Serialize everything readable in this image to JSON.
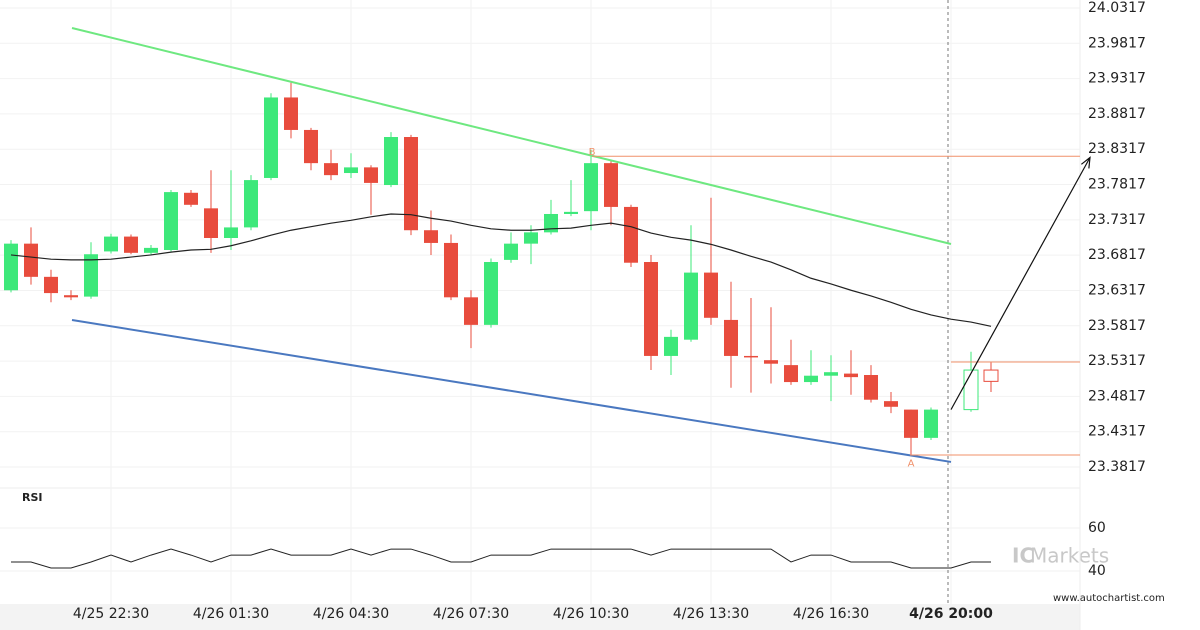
{
  "chart_data": {
    "type": "candlestick",
    "categories": [
      null,
      null,
      null,
      null,
      null,
      "4/25 22:30",
      null,
      null,
      null,
      null,
      null,
      "4/26 01:30",
      null,
      null,
      null,
      null,
      null,
      "4/26 04:30",
      null,
      null,
      null,
      null,
      null,
      "4/26 07:30",
      null,
      null,
      null,
      null,
      null,
      "4/26 10:30",
      null,
      null,
      null,
      null,
      null,
      "4/26 13:30",
      null,
      null,
      null,
      null,
      null,
      "4/26 16:30",
      null,
      null,
      null,
      null,
      null,
      "4/26 20:00",
      null,
      null
    ],
    "open": [
      23.632,
      23.698,
      23.651,
      23.625,
      23.623,
      23.687,
      23.708,
      23.685,
      23.689,
      23.77,
      23.748,
      23.706,
      23.721,
      23.791,
      23.905,
      23.859,
      23.812,
      23.798,
      23.806,
      23.781,
      23.849,
      23.717,
      23.699,
      23.622,
      23.583,
      23.675,
      23.698,
      23.714,
      23.74,
      23.744,
      23.812,
      23.75,
      23.672,
      23.539,
      23.562,
      23.657,
      23.59,
      23.539,
      23.533,
      23.526,
      23.502,
      23.511,
      23.514,
      23.512,
      23.475,
      23.463,
      23.423,
      null,
      23.463,
      23.519
    ],
    "high": [
      23.703,
      23.721,
      23.661,
      23.632,
      23.7,
      23.712,
      23.711,
      23.696,
      23.774,
      23.774,
      23.802,
      23.802,
      23.795,
      23.911,
      23.926,
      23.862,
      23.831,
      23.826,
      23.809,
      23.856,
      23.852,
      23.745,
      23.711,
      23.632,
      23.677,
      23.714,
      23.724,
      23.76,
      23.788,
      23.831,
      23.816,
      23.753,
      23.682,
      23.576,
      23.724,
      23.763,
      23.644,
      23.621,
      23.608,
      23.562,
      23.547,
      23.54,
      23.547,
      23.526,
      23.488,
      23.463,
      23.466,
      null,
      23.545,
      23.53
    ],
    "low": [
      23.629,
      23.64,
      23.615,
      23.618,
      23.62,
      23.684,
      23.683,
      23.682,
      23.687,
      23.75,
      23.685,
      23.689,
      23.717,
      23.788,
      23.847,
      23.802,
      23.788,
      23.791,
      23.739,
      23.778,
      23.71,
      23.682,
      23.618,
      23.55,
      23.579,
      23.671,
      23.669,
      23.711,
      23.737,
      23.717,
      23.724,
      23.665,
      23.519,
      23.512,
      23.559,
      23.583,
      23.494,
      23.487,
      23.5,
      23.498,
      23.498,
      23.475,
      23.484,
      23.473,
      23.458,
      23.399,
      23.42,
      null,
      23.46,
      23.488
    ],
    "close": [
      23.698,
      23.651,
      23.628,
      23.622,
      23.683,
      23.708,
      23.685,
      23.692,
      23.771,
      23.753,
      23.706,
      23.721,
      23.788,
      23.905,
      23.859,
      23.812,
      23.795,
      23.806,
      23.784,
      23.849,
      23.717,
      23.699,
      23.622,
      23.583,
      23.672,
      23.698,
      23.714,
      23.74,
      23.743,
      23.812,
      23.75,
      23.671,
      23.539,
      23.566,
      23.657,
      23.593,
      23.539,
      23.537,
      23.528,
      23.502,
      23.511,
      23.516,
      23.509,
      23.477,
      23.467,
      23.423,
      23.463,
      null,
      23.519,
      23.503
    ],
    "outline_candles_from": 48,
    "current_index": 47,
    "up_color": "#3de87a",
    "down_color": "#e84c3d",
    "ylim": [
      23.352,
      24.043
    ],
    "yticks": [
      24.0317,
      23.9817,
      23.9317,
      23.8817,
      23.8317,
      23.7817,
      23.7317,
      23.6817,
      23.6317,
      23.5817,
      23.5317,
      23.4817,
      23.4317,
      23.3817
    ],
    "grid": true,
    "moving_average": {
      "color": "#222222",
      "values": [
        23.682,
        23.679,
        23.676,
        23.675,
        23.675,
        23.676,
        23.679,
        23.682,
        23.686,
        23.689,
        23.69,
        23.695,
        23.702,
        23.71,
        23.717,
        23.722,
        23.727,
        23.731,
        23.736,
        23.74,
        23.739,
        23.734,
        23.73,
        23.724,
        23.719,
        23.717,
        23.717,
        23.719,
        23.72,
        23.724,
        23.727,
        23.722,
        23.713,
        23.707,
        23.703,
        23.697,
        23.689,
        23.68,
        23.672,
        23.661,
        23.649,
        23.641,
        23.632,
        23.624,
        23.615,
        23.605,
        23.597,
        23.591,
        23.587,
        23.581
      ]
    },
    "trendlines": [
      {
        "color": "#6ee880",
        "x": [
          3.05,
          47
        ],
        "y": [
          24.0034,
          23.6975
        ]
      },
      {
        "color": "#4a78c0",
        "x": [
          3.05,
          47
        ],
        "y": [
          23.5899,
          23.3889
        ]
      },
      {
        "color": "#f0906a",
        "x": [
          29.05,
          53.45
        ],
        "y": [
          23.8217,
          23.8217
        ]
      },
      {
        "color": "#f0906a",
        "x": [
          44.95,
          53.45
        ],
        "y": [
          23.3987,
          23.3987
        ]
      },
      {
        "color": "#f0906a",
        "x": [
          47,
          53.45
        ],
        "y": [
          23.5305,
          23.5305
        ]
      }
    ],
    "arrow": {
      "color": "#111111",
      "x": [
        47,
        53.95
      ],
      "y": [
        23.463,
        23.82
      ]
    },
    "point_labels": [
      {
        "text": "A",
        "x": 45,
        "y": 23.387
      },
      {
        "text": "B",
        "x": 29.05,
        "y": 23.828
      }
    ],
    "rsi": {
      "label": "RSI",
      "color": "#222222",
      "ylim": [
        24.65,
        78.6
      ],
      "yticks": [
        60,
        40
      ],
      "values": [
        44.2,
        44.2,
        41.4,
        41.4,
        44.2,
        47.4,
        44.2,
        47.4,
        50.2,
        47.4,
        44.2,
        47.4,
        47.4,
        50.2,
        47.4,
        47.4,
        47.4,
        50.2,
        47.4,
        50.2,
        50.2,
        47.4,
        44.2,
        44.2,
        47.4,
        47.4,
        47.4,
        50.2,
        50.2,
        50.2,
        50.2,
        50.2,
        47.4,
        50.2,
        50.2,
        50.2,
        50.2,
        50.2,
        50.2,
        44.2,
        47.4,
        47.4,
        44.2,
        44.2,
        44.2,
        41.4,
        41.4,
        41.4,
        44.2,
        44.2
      ]
    },
    "watermark": [
      "IC",
      "Markets"
    ],
    "site": "www.autochartist.com"
  }
}
